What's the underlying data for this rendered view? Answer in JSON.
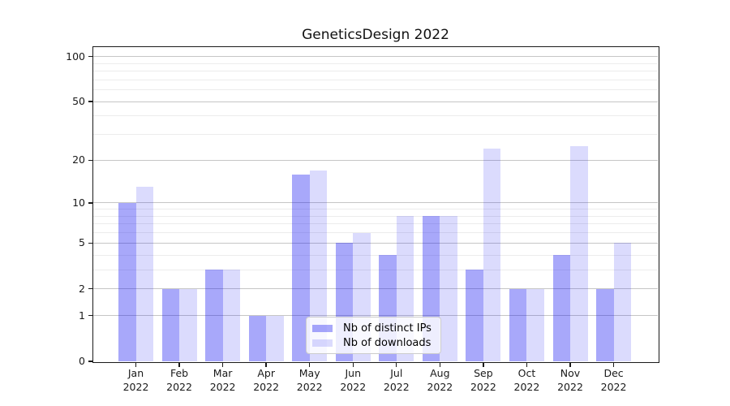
{
  "title": "GeneticsDesign 2022",
  "chart_data": {
    "type": "bar",
    "title": "GeneticsDesign 2022",
    "x_axis": {
      "months": [
        "Jan",
        "Feb",
        "Mar",
        "Apr",
        "May",
        "Jun",
        "Jul",
        "Aug",
        "Sep",
        "Oct",
        "Nov",
        "Dec"
      ],
      "year": "2022"
    },
    "categories": [
      "Jan 2022",
      "Feb 2022",
      "Mar 2022",
      "Apr 2022",
      "May 2022",
      "Jun 2022",
      "Jul 2022",
      "Aug 2022",
      "Sep 2022",
      "Oct 2022",
      "Nov 2022",
      "Dec 2022"
    ],
    "series": [
      {
        "name": "Nb of distinct IPs",
        "color": "#0d0df25c",
        "values": [
          10,
          2,
          3,
          1,
          16,
          5,
          4,
          8,
          3,
          2,
          4,
          2
        ]
      },
      {
        "name": "Nb of downloads",
        "color": "#0d0df226",
        "values": [
          13,
          2,
          3,
          1,
          17,
          6,
          8,
          8,
          24,
          2,
          25,
          5
        ]
      }
    ],
    "yscale": "log1p",
    "y_major_ticks": [
      0,
      1,
      2,
      5,
      10,
      20,
      50,
      100
    ],
    "y_minor_ticks": [
      3,
      4,
      6,
      7,
      8,
      9,
      30,
      40,
      60,
      70,
      80,
      90
    ],
    "ylim": [
      0,
      116
    ],
    "grid": true,
    "legend_position": "lower center"
  },
  "colors": {
    "bar_distinct_ips": "#0d0df25c",
    "bar_downloads": "#0d0df226",
    "grid_major": "#c6c6c6",
    "grid_minor": "#ececec",
    "spine": "#1a1a1a",
    "text": "#1a1a1a",
    "legend_border": "#cccccc"
  }
}
